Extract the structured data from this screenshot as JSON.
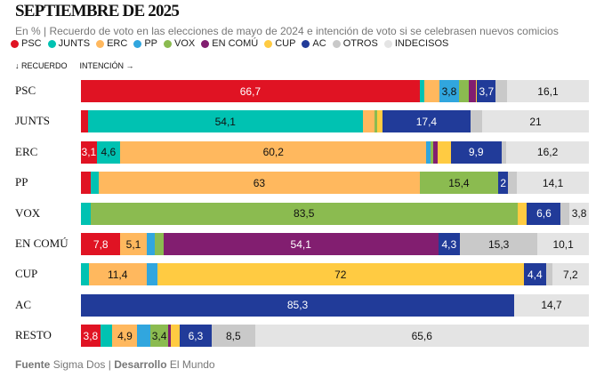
{
  "title": "SEPTIEMBRE DE 2025",
  "subtitle": "En % | Recuerdo de voto en las elecciones de mayo de 2024 e intención de voto si se celebrasen nuevos comicios",
  "axis_hints": {
    "recuerdo": "↓ RECUERDO",
    "intencion": "INTENCIÓN →"
  },
  "footer": {
    "fuente_label": "Fuente",
    "fuente": "Sigma Dos",
    "sep": "|",
    "desarrollo_label": "Desarrollo",
    "desarrollo": "El Mundo"
  },
  "chart_data": {
    "type": "stacked-bar-horizontal",
    "title": "SEPTIEMBRE DE 2025",
    "legend_position": "top",
    "series": [
      {
        "name": "PSC",
        "color": "#e01323",
        "text_color": "#ffffff"
      },
      {
        "name": "JUNTS",
        "color": "#00c2b2",
        "text_color": "#111111"
      },
      {
        "name": "ERC",
        "color": "#ffb85e",
        "text_color": "#111111"
      },
      {
        "name": "PP",
        "color": "#31a6de",
        "text_color": "#111111"
      },
      {
        "name": "VOX",
        "color": "#8bbb50",
        "text_color": "#111111"
      },
      {
        "name": "EN COMÚ",
        "color": "#821e70",
        "text_color": "#ffffff"
      },
      {
        "name": "CUP",
        "color": "#ffcb42",
        "text_color": "#111111"
      },
      {
        "name": "AC",
        "color": "#213b99",
        "text_color": "#ffffff"
      },
      {
        "name": "OTROS",
        "color": "#c9c9c9",
        "text_color": "#111111"
      },
      {
        "name": "INDECISOS",
        "color": "#e4e4e4",
        "text_color": "#111111"
      }
    ],
    "rows": [
      {
        "label": "PSC",
        "values": [
          66.7,
          0.9,
          3.0,
          3.8,
          2.0,
          1.3,
          0.3,
          3.7,
          2.2,
          16.1
        ],
        "labels": [
          "66,7",
          "",
          "",
          "3,8",
          "",
          "",
          "",
          "3,7",
          "",
          "16,1"
        ]
      },
      {
        "label": "JUNTS",
        "values": [
          1.4,
          54.1,
          2.3,
          0,
          0.5,
          0.1,
          1.0,
          17.4,
          2.3,
          21
        ],
        "labels": [
          "",
          "54,1",
          "",
          "",
          "",
          "",
          "",
          "17,4",
          "",
          "21"
        ]
      },
      {
        "label": "ERC",
        "values": [
          3.1,
          4.6,
          60.2,
          0.8,
          0.6,
          0.8,
          2.6,
          9.9,
          1.0,
          16.2
        ],
        "labels": [
          "3,1",
          "4,6",
          "60,2",
          "",
          "",
          "",
          "",
          "9,9",
          "",
          "16,2"
        ]
      },
      {
        "label": "PP",
        "values": [
          1.9,
          1.6,
          63,
          0,
          15.4,
          0,
          0,
          2,
          1.7,
          14.1
        ],
        "labels": [
          "",
          "",
          "63",
          "",
          "15,4",
          "",
          "",
          "2",
          "",
          "14,1"
        ]
      },
      {
        "label": "VOX",
        "values": [
          0,
          1.9,
          0,
          0,
          83.5,
          0,
          1.9,
          6.6,
          1.7,
          3.8
        ],
        "labels": [
          "",
          "",
          "",
          "",
          "83,5",
          "",
          "",
          "6,6",
          "",
          "3,8"
        ]
      },
      {
        "label": "EN COMÚ",
        "values": [
          7.8,
          0,
          5.1,
          1.7,
          1.7,
          54.1,
          0,
          4.3,
          15.3,
          10.1
        ],
        "labels": [
          "7,8",
          "",
          "5,1",
          "",
          "",
          "54,1",
          "",
          "4,3",
          "15,3",
          "10,1"
        ]
      },
      {
        "label": "CUP",
        "values": [
          0,
          1.5,
          11.4,
          2.1,
          0,
          0,
          72,
          4.4,
          1.2,
          7.2
        ],
        "labels": [
          "",
          "",
          "11,4",
          "",
          "",
          "",
          "72",
          "4,4",
          "",
          "7,2"
        ]
      },
      {
        "label": "AC",
        "values": [
          0,
          0,
          0,
          0,
          0,
          0,
          0,
          85.3,
          0,
          14.7
        ],
        "labels": [
          "",
          "",
          "",
          "",
          "",
          "",
          "",
          "85,3",
          "",
          "14,7"
        ]
      },
      {
        "label": "RESTO",
        "values": [
          3.8,
          2.4,
          4.9,
          2.6,
          3.4,
          0.6,
          1.7,
          6.3,
          8.5,
          65.6
        ],
        "labels": [
          "3,8",
          "",
          "4,9",
          "",
          "3,4",
          "",
          "",
          "6,3",
          "8,5",
          "65,6"
        ]
      }
    ]
  }
}
